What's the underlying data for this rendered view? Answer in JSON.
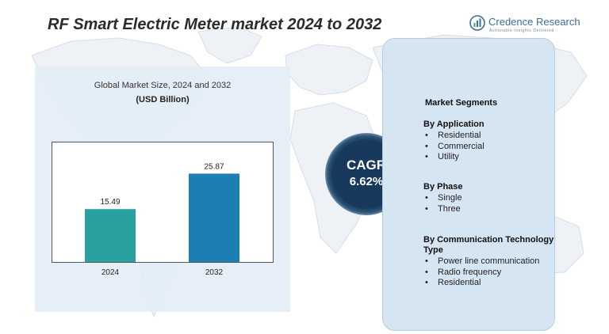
{
  "title": "RF Smart Electric Meter  market 2024  to 2032",
  "brand": {
    "name": "Credence Research",
    "tagline": "Actionable Insights Delivered"
  },
  "chart_data": {
    "type": "bar",
    "title": "Global Market Size, 2024 and 2032",
    "unit_label": "(USD Billion)",
    "categories": [
      "2024",
      "2032"
    ],
    "values": [
      15.49,
      25.87
    ],
    "data_labels": [
      "15.49",
      "25.87"
    ],
    "colors": [
      "#2aa0a0",
      "#1b7fb3"
    ],
    "ylim": [
      0,
      35
    ],
    "grid": false,
    "legend": "none"
  },
  "cagr": {
    "label": "CAGR",
    "value": "6.62%"
  },
  "segments": {
    "heading": "Market Segments",
    "groups": [
      {
        "title": "By Application",
        "items": [
          "Residential",
          "Commercial",
          "Utility"
        ]
      },
      {
        "title": "By Phase",
        "items": [
          "Single",
          "Three"
        ]
      },
      {
        "title": "By Communication Technology Type",
        "items": [
          "Power line communication",
          "Radio frequency",
          "Residential"
        ]
      }
    ]
  },
  "colors": {
    "panel_background": "#e2edf6",
    "segments_background": "#d6e5f2",
    "cagr_circle": "#173a5c",
    "brand_blue": "#3f6d93"
  }
}
